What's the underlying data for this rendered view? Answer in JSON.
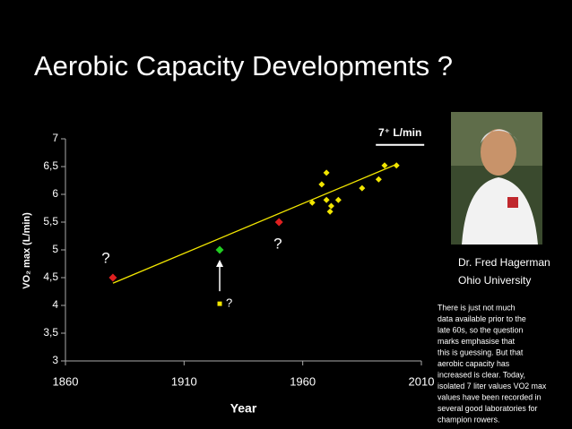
{
  "title": "Aerobic Capacity Developments ?",
  "chart_data": {
    "type": "scatter",
    "xlabel": "Year",
    "ylabel": "VO₂ max (L/min)",
    "xlim": [
      1860,
      2010
    ],
    "xticks": [
      1860,
      1910,
      1960,
      2010
    ],
    "ylim": [
      3,
      7
    ],
    "yticks": [
      3,
      {
        "value": 3.5,
        "label": "3,5"
      },
      4,
      {
        "value": 4.5,
        "label": "4,5"
      },
      5,
      {
        "value": 5.5,
        "label": "5,5"
      },
      6,
      {
        "value": 6.5,
        "label": "6,5"
      },
      7
    ],
    "series": [
      {
        "color": "#e02020",
        "x": [
          1880,
          1950
        ],
        "values": [
          4.5,
          5.5
        ]
      },
      {
        "color": "#22cc22",
        "x": [
          1925
        ],
        "values": [
          5.0
        ]
      },
      {
        "color": "#f2e600",
        "x": [
          1964,
          1968,
          1970,
          1970,
          1972,
          1971.5,
          1975,
          1985,
          1992,
          1994.5,
          1999.5
        ],
        "values": [
          5.85,
          6.18,
          6.39,
          5.9,
          5.79,
          5.69,
          5.9,
          6.11,
          6.27,
          6.52,
          6.52
        ]
      }
    ],
    "trendline": {
      "color": "#f2e600",
      "x": [
        1880,
        2000
      ],
      "values": [
        4.4,
        6.55
      ]
    },
    "annotations": [
      {
        "text": "?",
        "x": 1877,
        "y": 4.84
      },
      {
        "text": "?",
        "x": 1949.5,
        "y": 5.1
      },
      {
        "text": "?",
        "x": 1929,
        "y": 4.03
      },
      {
        "text": "7⁺ L/min",
        "x": 2001,
        "y": 7.1
      }
    ]
  },
  "photo_caption": [
    "Dr. Fred Hagerman",
    "Ohio University"
  ],
  "note": [
    "There is just not much",
    "data available prior to the",
    "late 60s, so the question",
    "marks emphasise that",
    "this is guessing.  But that",
    "aerobic capacity has",
    "increased is clear. Today,",
    "isolated 7 liter values VO2 max",
    "values  have been recorded in",
    "several good laboratories for",
    "champion rowers."
  ]
}
